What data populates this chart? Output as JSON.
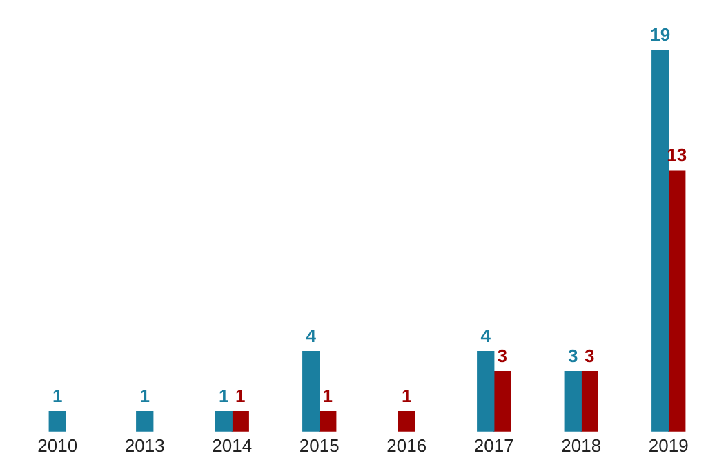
{
  "chart_data": {
    "type": "bar",
    "categories": [
      "2010",
      "2013",
      "2014",
      "2015",
      "2016",
      "2017",
      "2018",
      "2019"
    ],
    "series": [
      {
        "color": "#1a7fa0",
        "values": [
          1,
          1,
          1,
          4,
          null,
          4,
          3,
          19
        ]
      },
      {
        "color": "#a00000",
        "values": [
          null,
          null,
          1,
          1,
          1,
          3,
          3,
          13
        ]
      }
    ],
    "data_labels": true,
    "grid": false,
    "legend": false,
    "tick_labels": "x"
  }
}
